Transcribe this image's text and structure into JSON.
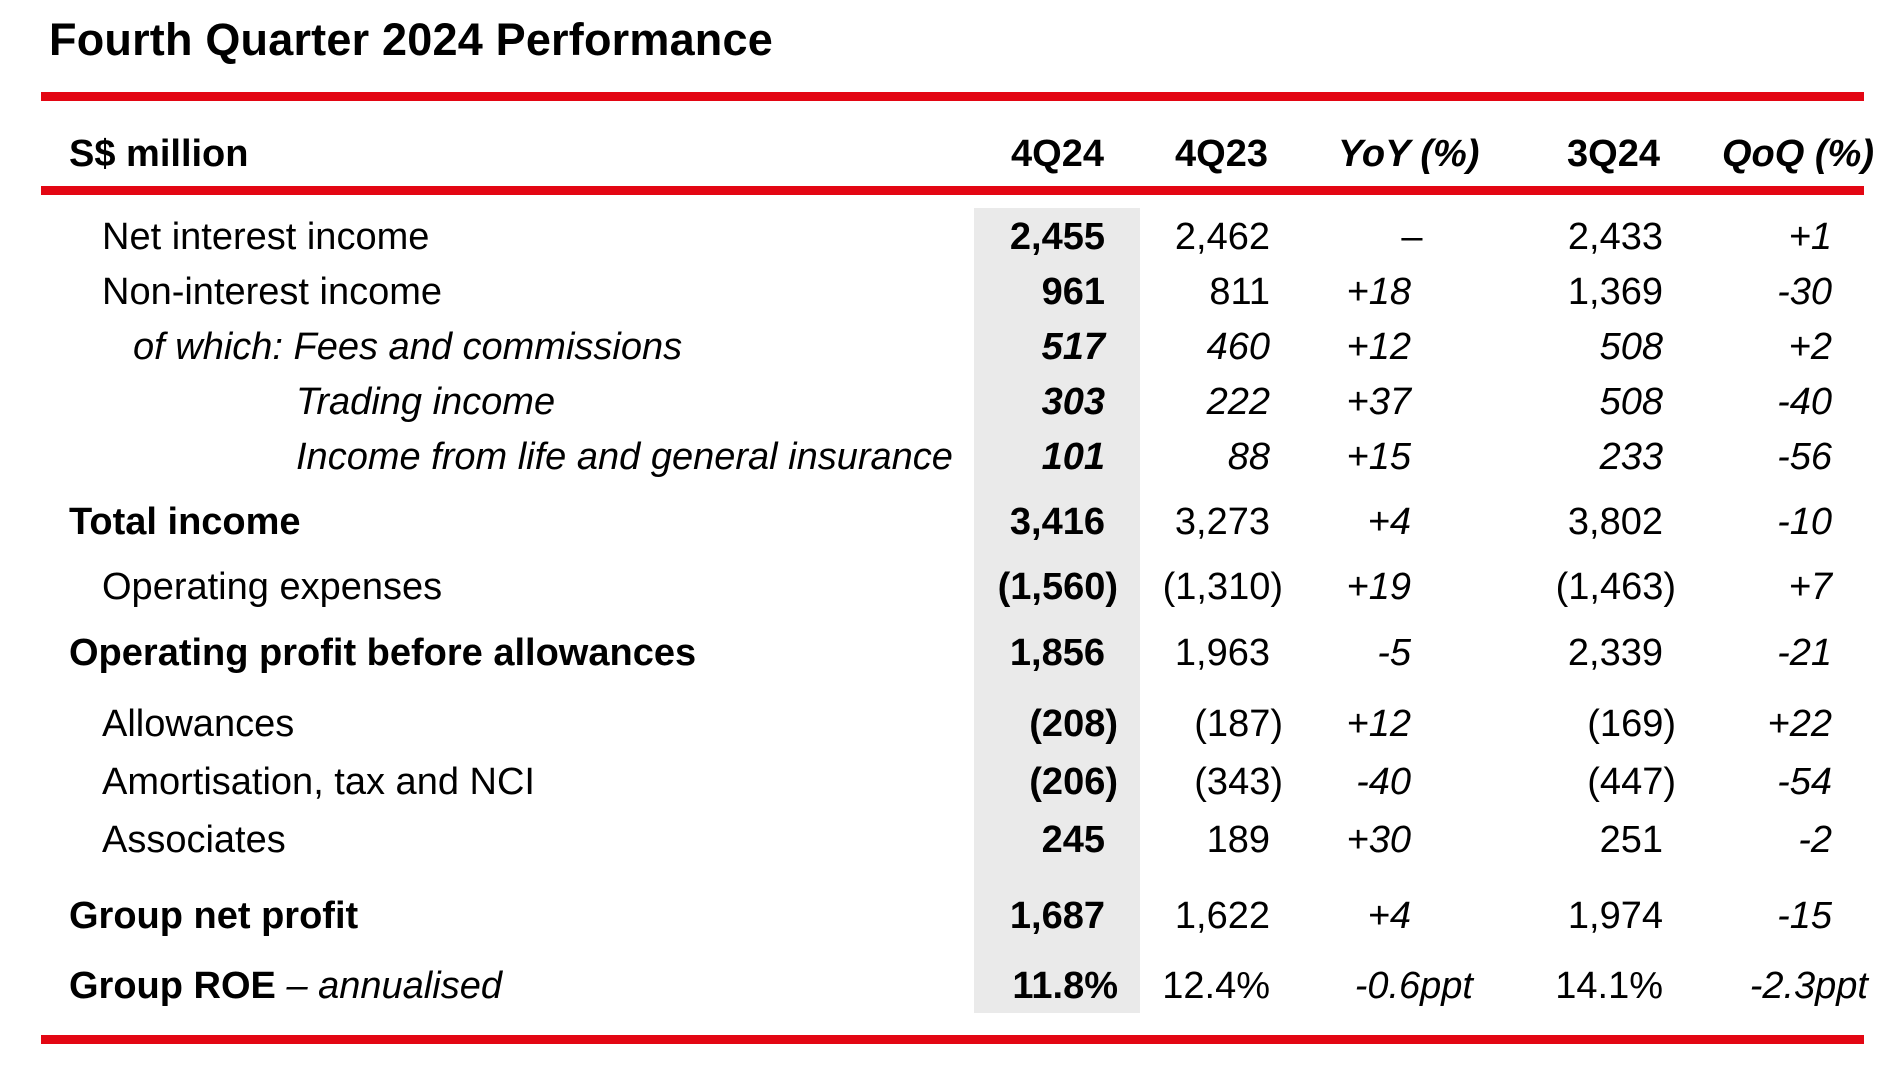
{
  "title": "Fourth Quarter 2024 Performance",
  "headers": {
    "label": "S$ million",
    "col1": "4Q24",
    "col2": "4Q23",
    "col3": "YoY (%)",
    "col4": "3Q24",
    "col5": "QoQ (%)"
  },
  "rows": [
    {
      "label": "Net interest income",
      "v1": "2,455",
      "v2": "2,462",
      "v3": "–",
      "v4": "2,433",
      "v5": "+1"
    },
    {
      "label": "Non-interest income",
      "v1": "961",
      "v2": "811",
      "v3": "+18",
      "v4": "1,369",
      "v5": "-30"
    },
    {
      "label": "of which: Fees and commissions",
      "v1": "517",
      "v2": "460",
      "v3": "+12",
      "v4": "508",
      "v5": "+2"
    },
    {
      "label": "Trading income",
      "v1": "303",
      "v2": "222",
      "v3": "+37",
      "v4": "508",
      "v5": "-40"
    },
    {
      "label": "Income from life and general insurance",
      "v1": "101",
      "v2": "88",
      "v3": "+15",
      "v4": "233",
      "v5": "-56"
    },
    {
      "label": "Total income",
      "v1": "3,416",
      "v2": "3,273",
      "v3": "+4",
      "v4": "3,802",
      "v5": "-10"
    },
    {
      "label": "Operating expenses",
      "v1": "(1,560)",
      "v2": "(1,310)",
      "v3": "+19",
      "v4": "(1,463)",
      "v5": "+7"
    },
    {
      "label": "Operating profit before allowances",
      "v1": "1,856",
      "v2": "1,963",
      "v3": "-5",
      "v4": "2,339",
      "v5": "-21"
    },
    {
      "label": "Allowances",
      "v1": "(208)",
      "v2": "(187)",
      "v3": "+12",
      "v4": "(169)",
      "v5": "+22"
    },
    {
      "label": "Amortisation, tax and NCI",
      "v1": "(206)",
      "v2": "(343)",
      "v3": "-40",
      "v4": "(447)",
      "v5": "-54"
    },
    {
      "label": "Associates",
      "v1": "245",
      "v2": "189",
      "v3": "+30",
      "v4": "251",
      "v5": "-2"
    },
    {
      "label": "Group net profit",
      "v1": "1,687",
      "v2": "1,622",
      "v3": "+4",
      "v4": "1,974",
      "v5": "-15"
    },
    {
      "label": "Group ROE",
      "label_suffix": " – annualised",
      "v1": "11.8%",
      "v2": "12.4%",
      "v3": "-0.6ppt",
      "v4": "14.1%",
      "v5": "-2.3ppt"
    }
  ]
}
